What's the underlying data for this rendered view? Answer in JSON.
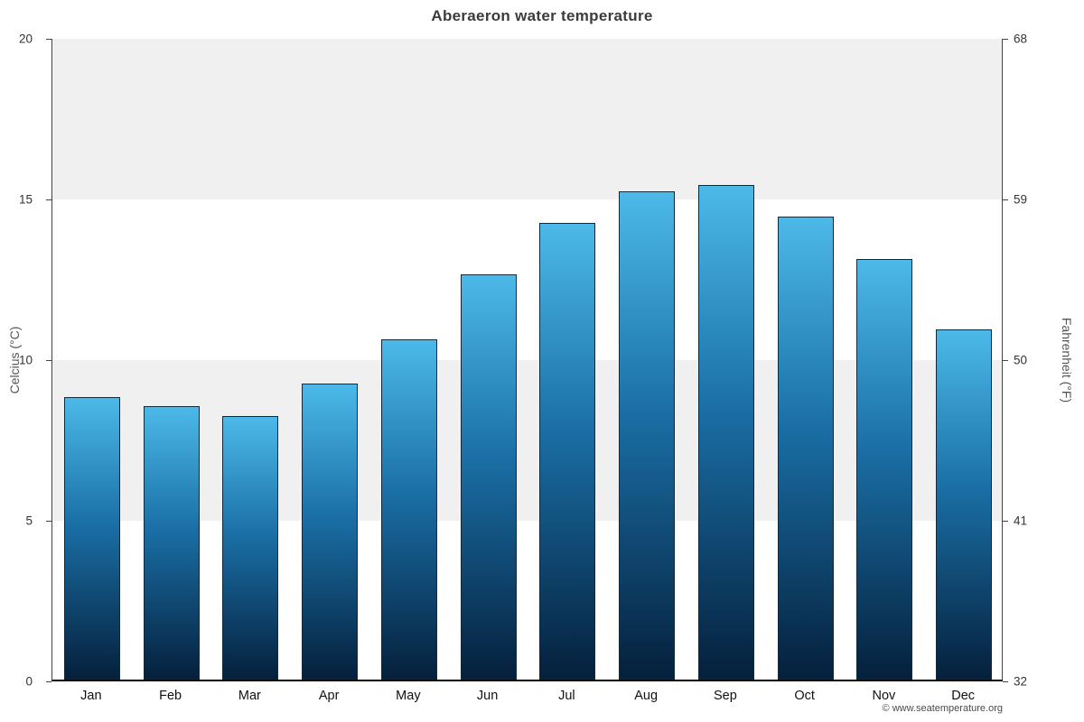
{
  "page": {
    "title": "Aberaeron water temperature",
    "copyright": "© www.seatemperature.org"
  },
  "axes": {
    "left_title": "Celcius (°C)",
    "right_title": "Fahrenheit (°F)"
  },
  "chart_data": {
    "type": "bar",
    "title": "Aberaeron water temperature",
    "categories": [
      "Jan",
      "Feb",
      "Mar",
      "Apr",
      "May",
      "Jun",
      "Jul",
      "Aug",
      "Sep",
      "Oct",
      "Nov",
      "Dec"
    ],
    "values": [
      8.8,
      8.5,
      8.2,
      9.2,
      10.6,
      12.6,
      14.2,
      15.2,
      15.4,
      14.4,
      13.1,
      10.9
    ],
    "xlabel": "",
    "ylabel_left": "Celcius (°C)",
    "ylabel_right": "Fahrenheit (°F)",
    "ylim": [
      0,
      20
    ],
    "yticks_left": [
      0,
      5,
      10,
      15,
      20
    ],
    "yticks_right": [
      32,
      41,
      50,
      59,
      68
    ],
    "grid": "banded",
    "legend": "none",
    "band_colors": [
      "#ffffff",
      "#f0f0f0"
    ],
    "bar_gradient_top": "#4cb9e9",
    "bar_gradient_mid": "#1a6fa6",
    "bar_gradient_bottom": "#05203c",
    "bar_border_color": "#122b3c"
  }
}
